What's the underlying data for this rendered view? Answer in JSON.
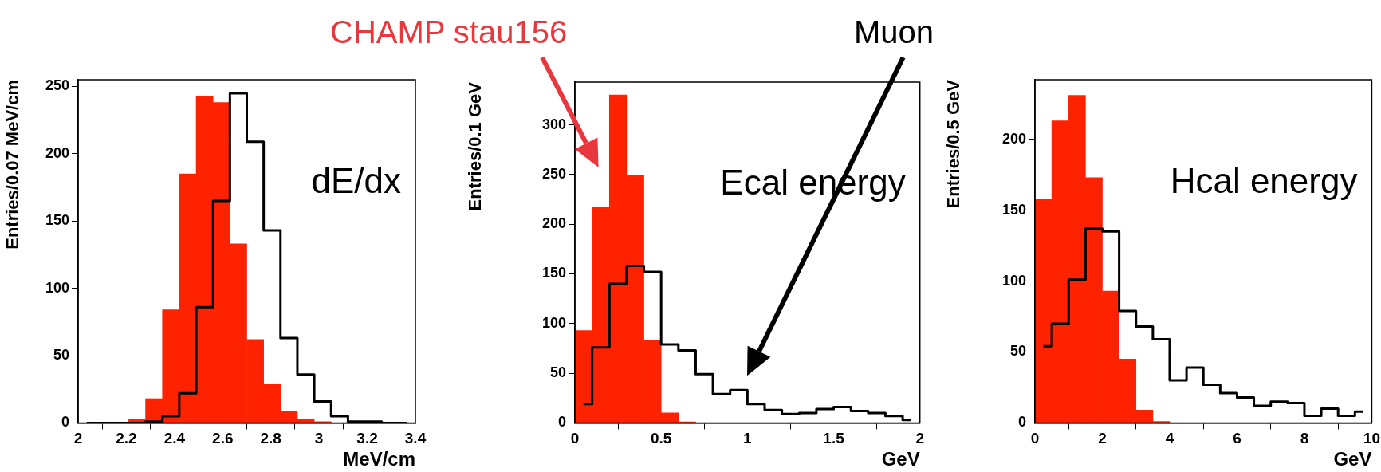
{
  "chart_data": [
    {
      "type": "histogram",
      "xlabel": "MeV/cm",
      "ylabel": "Entries/0.07 MeV/cm",
      "annotations": [
        "dE/dx"
      ],
      "bins": [
        2,
        2.07,
        2.14,
        2.21,
        2.28,
        2.35,
        2.42,
        2.49,
        2.56,
        2.63,
        2.7,
        2.77,
        2.84,
        2.91,
        2.98,
        3.05,
        3.12,
        3.19,
        3.26,
        3.33,
        3.4
      ],
      "series": [
        {
          "color": "#ff2200",
          "values": [
            0,
            0,
            0,
            3,
            18,
            84,
            185,
            243,
            238,
            133,
            62,
            29,
            9,
            3,
            1,
            0,
            0,
            0,
            0,
            0
          ]
        },
        {
          "type": "step",
          "color": "#000000",
          "x": [
            2.035,
            2.105,
            2.175,
            2.245,
            2.315,
            2.385,
            2.455,
            2.525,
            2.595,
            2.665,
            2.735,
            2.805,
            2.875,
            2.945,
            3.015,
            3.085,
            3.155,
            3.225,
            3.295,
            3.365
          ],
          "values": [
            0,
            0,
            0,
            0,
            1,
            5,
            22,
            86,
            165,
            245,
            209,
            143,
            63,
            36,
            16,
            5,
            1,
            1,
            0,
            0
          ]
        }
      ],
      "xlim": [
        2,
        3.4
      ],
      "xticks": [
        2,
        2.2,
        2.4,
        2.6,
        2.8,
        3,
        3.2,
        3.4
      ],
      "ylim": [
        0,
        255
      ],
      "yticks": [
        0,
        50,
        100,
        150,
        200,
        250
      ],
      "grid": false,
      "legend": false
    },
    {
      "type": "histogram",
      "xlabel": "GeV",
      "ylabel": "Entries/0.1 GeV",
      "annotations": [
        "Ecal energy"
      ],
      "bins": [
        0,
        0.1,
        0.2,
        0.3,
        0.4,
        0.5,
        0.6,
        0.7,
        0.8,
        0.9,
        1,
        1.1,
        1.2,
        1.3,
        1.4,
        1.5,
        1.6,
        1.7,
        1.8,
        1.9,
        2
      ],
      "series": [
        {
          "name": "CHAMP stau156",
          "color": "#ff2200",
          "values": [
            93,
            217,
            330,
            249,
            83,
            10,
            1,
            0,
            0,
            0,
            0,
            0,
            0,
            0,
            0,
            0,
            0,
            0,
            0,
            0
          ]
        },
        {
          "type": "step",
          "name": "Muon",
          "color": "#000000",
          "x": [
            0.05,
            0.15,
            0.25,
            0.35,
            0.45,
            0.55,
            0.65,
            0.75,
            0.85,
            0.95,
            1.05,
            1.15,
            1.25,
            1.35,
            1.45,
            1.55,
            1.65,
            1.75,
            1.85,
            1.95
          ],
          "values": [
            19,
            76,
            140,
            158,
            152,
            79,
            73,
            49,
            29,
            33,
            19,
            13,
            9,
            10,
            14,
            16,
            12,
            10,
            7,
            3
          ]
        }
      ],
      "xlim": [
        0,
        2
      ],
      "xticks": [
        0,
        0.5,
        1,
        1.5,
        2
      ],
      "ylim": [
        0,
        343
      ],
      "yticks": [
        0,
        50,
        100,
        150,
        200,
        250,
        300
      ],
      "grid": false,
      "legend": false
    },
    {
      "type": "histogram",
      "xlabel": "GeV",
      "ylabel": "Entries/0.5 GeV",
      "annotations": [
        "Hcal energy"
      ],
      "bins": [
        0,
        0.5,
        1,
        1.5,
        2,
        2.5,
        3,
        3.5,
        4,
        4.5,
        5,
        5.5,
        6,
        6.5,
        7,
        7.5,
        8,
        8.5,
        9,
        9.5,
        10
      ],
      "series": [
        {
          "color": "#ff2200",
          "values": [
            158,
            213,
            231,
            173,
            93,
            45,
            9,
            1,
            0,
            0,
            0,
            0,
            0,
            0,
            0,
            0,
            0,
            0,
            0,
            0
          ]
        },
        {
          "type": "step",
          "color": "#000000",
          "x": [
            0.25,
            0.75,
            1.25,
            1.75,
            2.25,
            2.75,
            3.25,
            3.75,
            4.25,
            4.75,
            5.25,
            5.75,
            6.25,
            6.75,
            7.25,
            7.75,
            8.25,
            8.75,
            9.25,
            9.75
          ],
          "values": [
            54,
            70,
            101,
            137,
            135,
            79,
            68,
            59,
            30,
            39,
            27,
            21,
            18,
            12,
            15,
            14,
            5,
            10,
            5,
            8
          ]
        }
      ],
      "xlim": [
        0,
        10
      ],
      "xticks": [
        0,
        2,
        4,
        6,
        8,
        10
      ],
      "ylim": [
        0,
        242
      ],
      "yticks": [
        0,
        50,
        100,
        150,
        200
      ],
      "grid": false,
      "legend": false
    }
  ]
}
